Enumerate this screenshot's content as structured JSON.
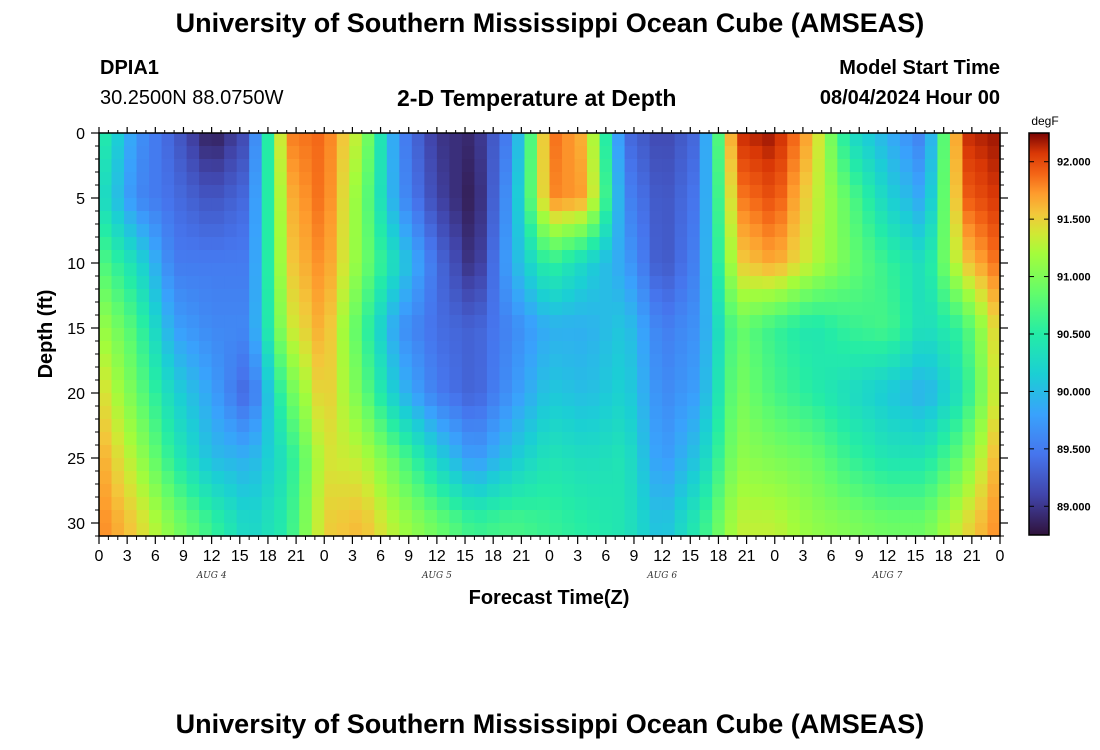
{
  "page": {
    "title": "University of Southern Mississippi Ocean Cube (AMSEAS)",
    "station": "DPIA1",
    "coords": "30.2500N  88.0750W",
    "plot_title": "2-D Temperature at Depth",
    "model_start_label": "Model Start Time",
    "model_start_value": "08/04/2024 Hour 00",
    "footer_title": "University of Southern Mississippi Ocean Cube (AMSEAS)"
  },
  "chart_data": {
    "type": "heatmap",
    "title": "2-D Temperature at Depth",
    "xlabel": "Forecast Time(Z)",
    "ylabel": "Depth (ft)",
    "x_range_hours": [
      0,
      96
    ],
    "x_step_hours": 3,
    "x_tick_labels": [
      "0",
      "3",
      "6",
      "9",
      "12",
      "15",
      "18",
      "21",
      "0",
      "3",
      "6",
      "9",
      "12",
      "15",
      "18",
      "21",
      "0",
      "3",
      "6",
      "9",
      "12",
      "15",
      "18",
      "21",
      "0",
      "3",
      "6",
      "9",
      "12",
      "15",
      "18",
      "21",
      "0"
    ],
    "x_day_labels": [
      {
        "label": "AUG 4",
        "hour": 12
      },
      {
        "label": "AUG 5",
        "hour": 36
      },
      {
        "label": "AUG 6",
        "hour": 60
      },
      {
        "label": "AUG 7",
        "hour": 84
      }
    ],
    "y_range": [
      0,
      31
    ],
    "y_ticks": [
      0,
      5,
      10,
      15,
      20,
      25,
      30
    ],
    "colorbar": {
      "unit": "degF",
      "range": [
        88.75,
        92.25
      ],
      "ticks": [
        89.0,
        89.5,
        90.0,
        90.5,
        91.0,
        91.5,
        92.0
      ],
      "tick_labels": [
        "89.000",
        "89.500",
        "90.000",
        "90.500",
        "91.000",
        "91.500",
        "92.000"
      ],
      "colormap": "turbo"
    },
    "depths_ft": [
      0,
      5,
      10,
      15,
      20,
      25,
      30
    ],
    "hours": [
      0,
      4,
      8,
      12,
      16,
      20,
      24,
      28,
      32,
      36,
      40,
      44,
      48,
      52,
      56,
      60,
      64,
      68,
      72,
      76,
      80,
      84,
      88,
      92,
      96
    ],
    "temperature_degF": [
      [
        90.6,
        89.7,
        89.3,
        88.8,
        89.2,
        91.8,
        91.9,
        91.2,
        89.6,
        89.0,
        88.9,
        89.6,
        91.9,
        91.6,
        89.4,
        89.1,
        89.4,
        92.1,
        92.2,
        91.6,
        90.3,
        89.9,
        89.5,
        92.1,
        92.2
      ],
      [
        90.4,
        89.6,
        89.4,
        89.2,
        89.4,
        91.6,
        91.9,
        91.0,
        89.7,
        89.1,
        88.8,
        89.8,
        91.8,
        91.7,
        89.6,
        89.2,
        89.5,
        91.8,
        92.0,
        91.4,
        90.8,
        90.2,
        89.8,
        91.9,
        92.1
      ],
      [
        90.8,
        90.3,
        89.5,
        89.5,
        89.5,
        91.5,
        91.8,
        91.0,
        90.2,
        89.4,
        88.9,
        89.9,
        90.6,
        90.2,
        89.8,
        89.2,
        89.6,
        91.5,
        91.7,
        91.3,
        90.9,
        90.6,
        90.3,
        91.5,
        91.9
      ],
      [
        91.2,
        90.7,
        89.8,
        89.6,
        89.6,
        91.3,
        91.7,
        90.7,
        89.7,
        89.4,
        89.3,
        89.6,
        89.9,
        89.9,
        90.1,
        89.5,
        89.7,
        90.9,
        90.6,
        90.4,
        90.6,
        90.7,
        90.3,
        90.6,
        91.6
      ],
      [
        91.5,
        90.9,
        90.2,
        89.8,
        89.3,
        90.8,
        91.6,
        90.9,
        90.0,
        89.5,
        89.3,
        89.7,
        90.1,
        90.0,
        90.2,
        89.6,
        89.8,
        91.0,
        90.7,
        90.5,
        90.3,
        90.1,
        89.9,
        90.4,
        91.5
      ],
      [
        91.7,
        91.2,
        90.5,
        90.0,
        89.9,
        90.4,
        91.4,
        91.3,
        90.8,
        90.2,
        89.7,
        90.1,
        90.4,
        90.3,
        90.4,
        89.7,
        90.1,
        91.1,
        91.0,
        90.9,
        90.6,
        90.4,
        90.4,
        90.9,
        91.7
      ],
      [
        91.8,
        91.5,
        91.0,
        90.6,
        90.2,
        90.5,
        91.5,
        91.6,
        91.2,
        90.9,
        90.6,
        90.7,
        90.6,
        90.5,
        90.4,
        90.0,
        90.5,
        91.3,
        91.3,
        91.1,
        91.0,
        90.9,
        90.9,
        91.4,
        91.8
      ]
    ]
  }
}
